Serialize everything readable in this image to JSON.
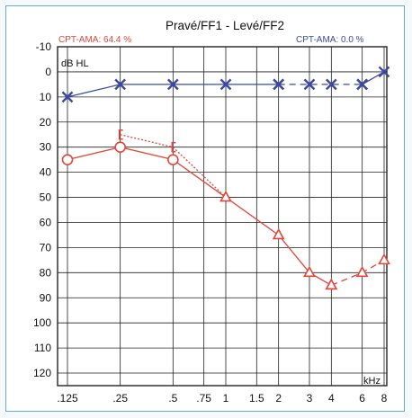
{
  "chart_data": {
    "type": "line",
    "title": "Pravé/FF1 - Levé/FF2",
    "annotations": {
      "left": {
        "text": "CPT-AMA: 64.4 %",
        "color": "#e2463a"
      },
      "right": {
        "text": "CPT-AMA: 0.0 %",
        "color": "#3b4a9e"
      }
    },
    "ylabel": "dB HL",
    "xlabel": "kHz",
    "y_inverted": true,
    "ylim": [
      -10,
      125
    ],
    "y_ticks": [
      "-10",
      "0",
      "10",
      "20",
      "30",
      "40",
      "50",
      "60",
      "70",
      "80",
      "90",
      "100",
      "110",
      "120"
    ],
    "x_ticks": [
      ".125",
      ".25",
      ".5",
      ".75",
      "1",
      "1.5",
      "2",
      "3",
      "4",
      "6",
      "8"
    ],
    "grid": true,
    "series": [
      {
        "marker": "x",
        "color": "#3b4a9e",
        "linestyle": "solid",
        "x": [
          ".125",
          ".25",
          ".5",
          "1",
          "2"
        ],
        "y": [
          10,
          5,
          5,
          5,
          5
        ]
      },
      {
        "marker": "x",
        "color": "#3b4a9e",
        "linestyle": "dashed",
        "x": [
          "2",
          "3",
          "4",
          "6"
        ],
        "y": [
          5,
          5,
          5,
          5
        ]
      },
      {
        "marker": "x",
        "color": "#3b4a9e",
        "linestyle": "solid",
        "x": [
          "6",
          "8"
        ],
        "y": [
          5,
          0
        ]
      },
      {
        "marker": "circle",
        "color": "#e2463a",
        "linestyle": "solid",
        "x": [
          ".125",
          ".25",
          ".5"
        ],
        "y": [
          35,
          30,
          35
        ]
      },
      {
        "marker": "bracket",
        "color": "#e2463a",
        "linestyle": "dotted",
        "x": [
          ".25",
          ".5"
        ],
        "y": [
          25,
          30
        ]
      },
      {
        "marker": "none",
        "color": "#e2463a",
        "linestyle": "dotted",
        "x": [
          ".5",
          "1"
        ],
        "y": [
          30,
          50
        ]
      },
      {
        "marker": "none",
        "color": "#e2463a",
        "linestyle": "solid",
        "x": [
          ".5",
          "1"
        ],
        "y": [
          35,
          50
        ]
      },
      {
        "marker": "triangle",
        "color": "#e2463a",
        "linestyle": "solid",
        "x": [
          "1",
          "2",
          "3",
          "4"
        ],
        "y": [
          50,
          65,
          80,
          85
        ]
      },
      {
        "marker": "triangle",
        "color": "#e2463a",
        "linestyle": "dashed",
        "x": [
          "4",
          "6",
          "8"
        ],
        "y": [
          85,
          80,
          75
        ]
      }
    ]
  }
}
